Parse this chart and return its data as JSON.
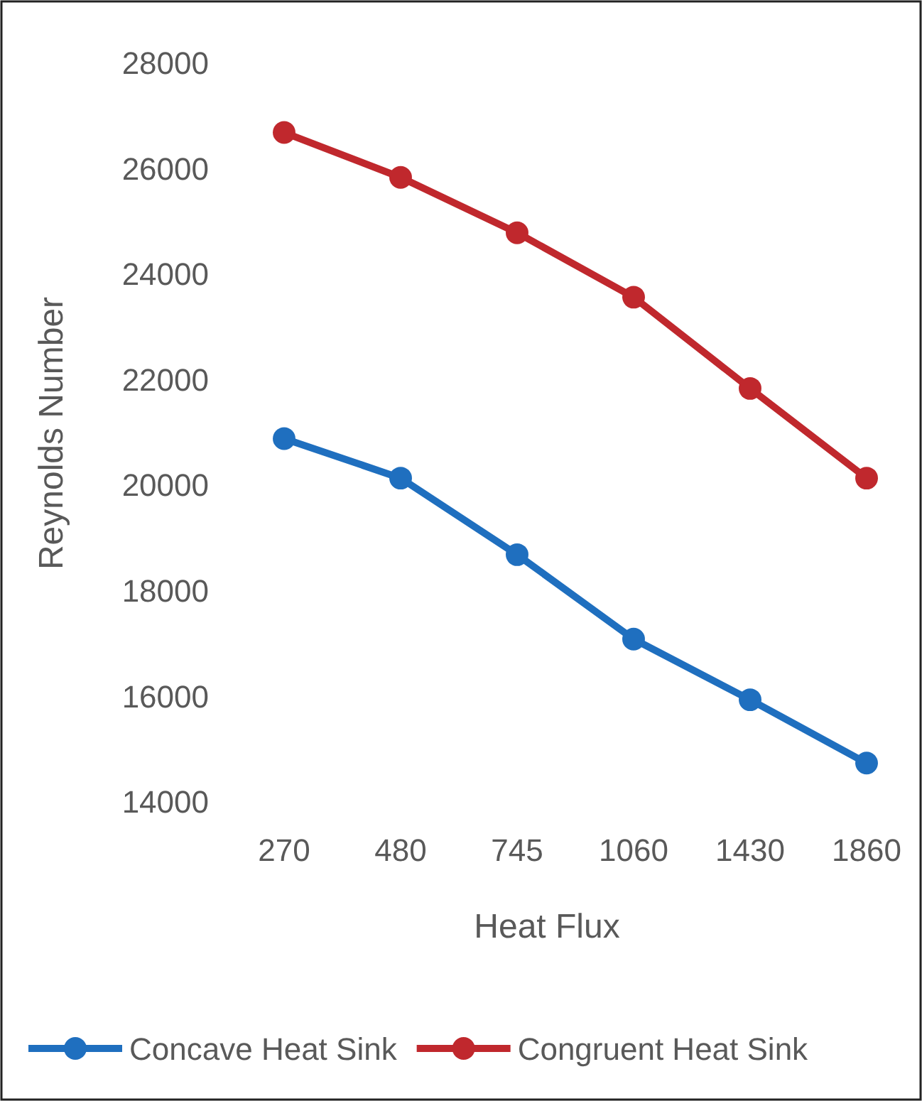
{
  "chart_data": {
    "type": "line",
    "xlabel": "Heat Flux",
    "ylabel": "Reynolds Number",
    "categories": [
      "270",
      "480",
      "745",
      "1060",
      "1430",
      "1860"
    ],
    "ylim": [
      14000,
      28000
    ],
    "yticks": [
      14000,
      16000,
      18000,
      20000,
      22000,
      24000,
      26000,
      28000
    ],
    "grid": false,
    "legend": "bottom",
    "marker": "circle",
    "line_style": "solid",
    "series": [
      {
        "name": "Concave Heat Sink",
        "color": "#1f6fbf",
        "values": [
          20900,
          20150,
          18700,
          17100,
          15950,
          14750
        ]
      },
      {
        "name": "Congruent Heat Sink",
        "color": "#c0282d",
        "values": [
          26700,
          25850,
          24800,
          23580,
          21850,
          20150
        ]
      }
    ]
  }
}
